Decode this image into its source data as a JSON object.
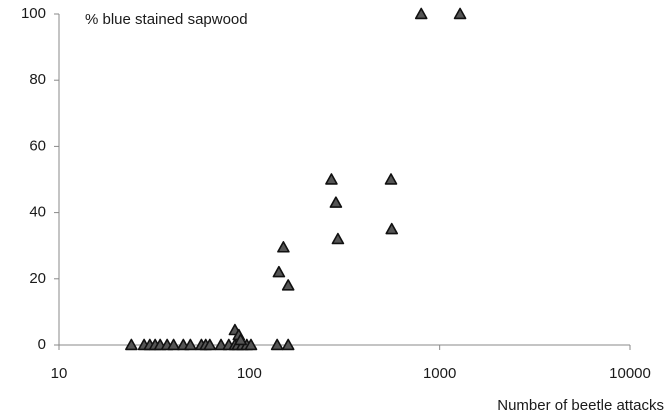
{
  "chart_data": {
    "type": "scatter",
    "title": "",
    "xlabel": "Number of beetle attacks",
    "ylabel": "% blue stained sapwood",
    "x_scale": "log",
    "xlim": [
      10,
      10000
    ],
    "ylim": [
      0,
      100
    ],
    "x_ticks": [
      "10",
      "100",
      "1000",
      "10000"
    ],
    "y_ticks": [
      "0",
      "20",
      "40",
      "60",
      "80",
      "100"
    ],
    "grid": false,
    "legend": "none",
    "marker": "triangle",
    "marker_fill": "#555555",
    "marker_edge": "#111111",
    "series": [
      {
        "points": [
          {
            "x": 24,
            "y": 0
          },
          {
            "x": 28,
            "y": 0
          },
          {
            "x": 30,
            "y": 0
          },
          {
            "x": 32,
            "y": 0
          },
          {
            "x": 34,
            "y": 0
          },
          {
            "x": 37,
            "y": 0
          },
          {
            "x": 40,
            "y": 0
          },
          {
            "x": 45,
            "y": 0
          },
          {
            "x": 49,
            "y": 0
          },
          {
            "x": 56,
            "y": 0
          },
          {
            "x": 59,
            "y": 0
          },
          {
            "x": 62,
            "y": 0
          },
          {
            "x": 71,
            "y": 0
          },
          {
            "x": 78,
            "y": 0
          },
          {
            "x": 84,
            "y": 0
          },
          {
            "x": 87,
            "y": 0
          },
          {
            "x": 92,
            "y": 0
          },
          {
            "x": 97,
            "y": 0
          },
          {
            "x": 102,
            "y": 0
          },
          {
            "x": 84,
            "y": 4.5
          },
          {
            "x": 88,
            "y": 3
          },
          {
            "x": 90,
            "y": 1.5
          },
          {
            "x": 140,
            "y": 0
          },
          {
            "x": 160,
            "y": 0
          },
          {
            "x": 143,
            "y": 22
          },
          {
            "x": 151,
            "y": 29.5
          },
          {
            "x": 160,
            "y": 18
          },
          {
            "x": 270,
            "y": 50
          },
          {
            "x": 285,
            "y": 43
          },
          {
            "x": 292,
            "y": 32
          },
          {
            "x": 555,
            "y": 50
          },
          {
            "x": 560,
            "y": 35
          },
          {
            "x": 800,
            "y": 100
          },
          {
            "x": 1280,
            "y": 100
          }
        ]
      }
    ]
  }
}
